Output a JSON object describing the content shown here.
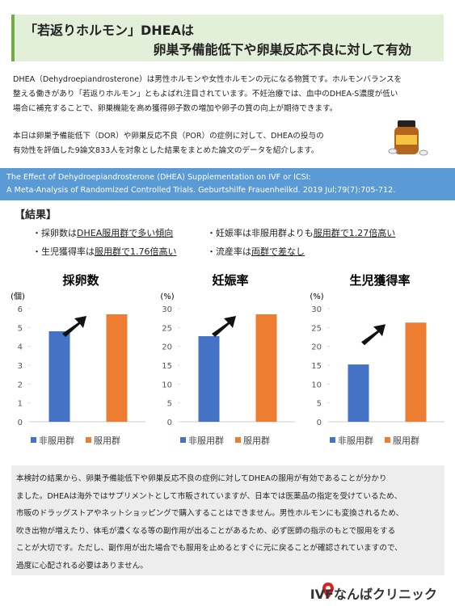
{
  "header": {
    "title": [
      "「若返りホルモン」DHEAは",
      "卵巣予備能低下や卵巣反応不良に対して有効"
    ]
  },
  "intro": {
    "paragraph1": [
      "DHEA（Dehydroepiandrosterone）は男性ホルモンや女性ホルモンの元になる物質です。ホルモンバランスを",
      "整える働きがあり「若返りホルモン」ともよばれ注目されています。不妊治療では、血中のDHEA-S濃度が低い",
      "場合に補充することで、卵巣機能を高め獲得卵子数の増加や卵子の質の向上が期待できます。"
    ],
    "paragraph2": [
      "本日は卵巣予備能低下（DOR）や卵巣反応不良（POR）の症例に対して、DHEAの投与の",
      "有効性を評価した9論文833人を対象とした結果をまとめた論文のデータを紹介します。"
    ]
  },
  "citation": [
    "The Effect of Dehydroepiandrosterone (DHEA) Supplementation on IVF or ICSI:",
    "A Meta-Analysis of Randomized Controlled Trials. Geburtshilfe Frauenheilkd. 2019 Jul;79(7):705-712."
  ],
  "results": {
    "heading": "【結果】",
    "items": [
      [
        "・採卵数は",
        "DHEA服用群で多い傾向"
      ],
      [
        "・妊娠率は非服用群よりも",
        "服用群で1.27倍高い"
      ],
      [
        "・生児獲得率は",
        "服用群で1.76倍高い"
      ],
      [
        "・流産率は",
        "両群で差なし"
      ]
    ]
  },
  "chart_data": [
    {
      "type": "bar",
      "title": "採卵数",
      "y_label": "(個)",
      "ylim": [
        0,
        6
      ],
      "yticks": [
        0,
        1,
        2,
        3,
        4,
        5,
        6
      ],
      "grid": false,
      "series": [
        {
          "name": "非服用群",
          "color": "#4472c4",
          "values": [
            4.8
          ]
        },
        {
          "name": "服用群",
          "color": "#ed7d31",
          "values": [
            5.7
          ]
        }
      ]
    },
    {
      "type": "bar",
      "title": "妊娠率",
      "y_label": "(%)",
      "ylim": [
        0,
        30
      ],
      "yticks": [
        0,
        5,
        10,
        15,
        20,
        25,
        30
      ],
      "grid": false,
      "series": [
        {
          "name": "非服用群",
          "color": "#4472c4",
          "values": [
            22.7
          ]
        },
        {
          "name": "服用群",
          "color": "#ed7d31",
          "values": [
            28.5
          ]
        }
      ]
    },
    {
      "type": "bar",
      "title": "生児獲得率",
      "y_label": "(%)",
      "ylim": [
        0,
        30
      ],
      "yticks": [
        0,
        5,
        10,
        15,
        20,
        25,
        30
      ],
      "grid": false,
      "series": [
        {
          "name": "非服用群",
          "color": "#4472c4",
          "values": [
            15.2
          ]
        },
        {
          "name": "服用群",
          "color": "#ed7d31",
          "values": [
            26.3
          ]
        }
      ]
    }
  ],
  "conclusion": [
    "本検討の結果から、卵巣予備能低下や卵巣反応不良の症例に対してDHEAの服用が有効であることが分かり",
    "ました。DHEAは海外ではサプリメントとして市販されていますが、日本では医薬品の指定を受けているため、",
    "市販のドラッグストアやネットショッピングで購入することはできません。男性ホルモンにも変換されるため、",
    "吹き出物が増えたり、体毛が濃くなる等の副作用が出ることがあるため、必ず医師の指示のもとで服用をする",
    "ことが大切です。ただし、副作用が出た場合でも服用を止めるとすぐに元に戻ることが確認されていますので、",
    "過度に心配される必要はありません。"
  ],
  "footer": {
    "logo": "IVFなんばクリニック"
  }
}
